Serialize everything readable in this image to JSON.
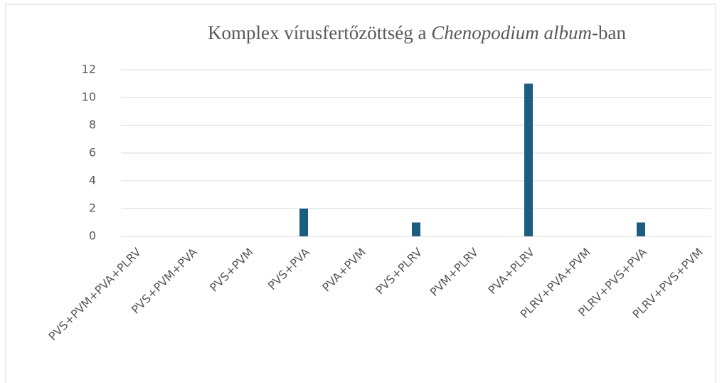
{
  "chart_data": {
    "type": "bar",
    "title": [
      "Komplex vírusfertőzöttség a ",
      "Chenopodium album",
      "-ban"
    ],
    "categories": [
      "PVS+PVM+PVA+PLRV",
      "PVS+PVM+PVA",
      "PVS+PVM",
      "PVS+PVA",
      "PVA+PVM",
      "PVS+PLRV",
      "PVM+PLRV",
      "PVA+PLRV",
      "PLRV+PVA+PVM",
      "PLRV+PVS+PVA",
      "PLRV+PVS+PVM"
    ],
    "values": [
      0,
      0,
      0,
      2,
      0,
      1,
      0,
      11,
      0,
      1,
      0
    ],
    "color": "#1b5e82",
    "ylim": [
      0,
      12
    ],
    "yticks": [
      0,
      2,
      4,
      6,
      8,
      10,
      12
    ],
    "grid": true
  }
}
